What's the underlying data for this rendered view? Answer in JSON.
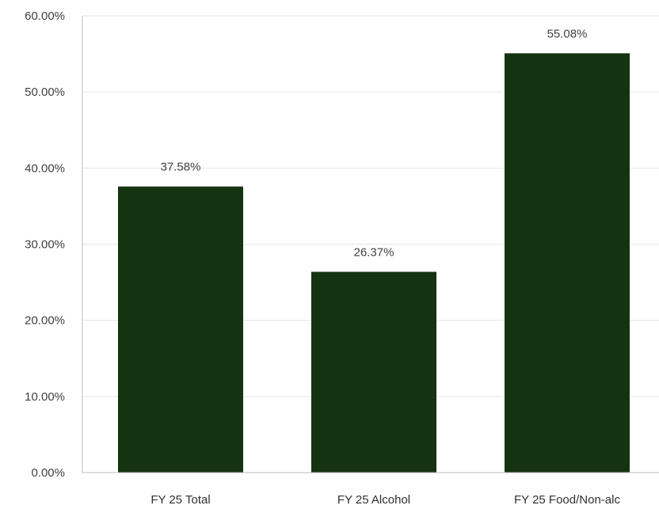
{
  "chart_data": {
    "type": "bar",
    "categories": [
      "FY 25 Total",
      "FY 25 Alcohol",
      "FY 25 Food/Non-alc"
    ],
    "values": [
      37.58,
      26.37,
      55.08
    ],
    "data_labels": [
      "37.58%",
      "26.37%",
      "55.08%"
    ],
    "y_ticks": [
      0,
      10,
      20,
      30,
      40,
      50,
      60
    ],
    "y_tick_labels": [
      "0.00%",
      "10.00%",
      "20.00%",
      "30.00%",
      "40.00%",
      "50.00%",
      "60.00%"
    ],
    "ylim": [
      0,
      60
    ],
    "title": "",
    "xlabel": "",
    "ylabel": "",
    "grid": true,
    "legend": "none",
    "bar_color": "#133311"
  }
}
